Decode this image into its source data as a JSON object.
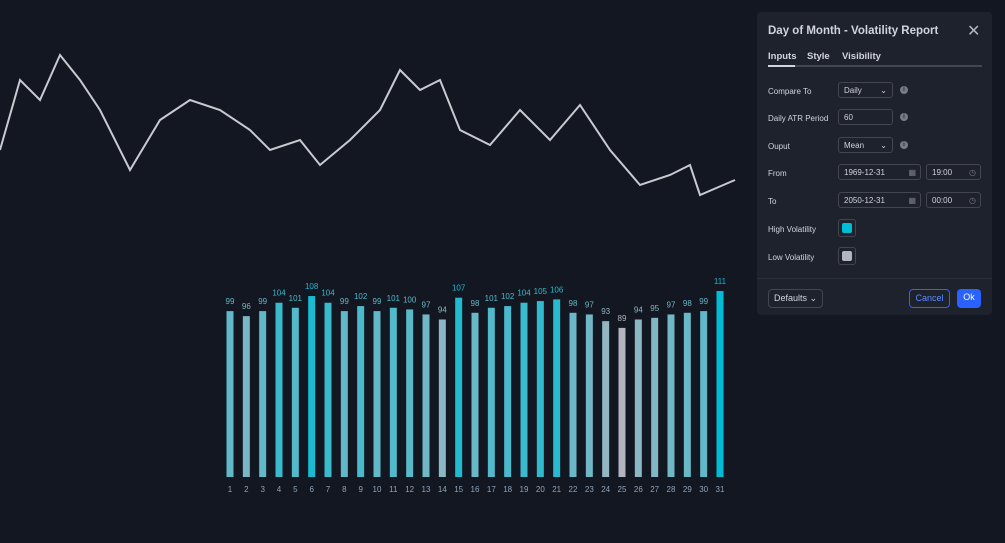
{
  "chart_data": {
    "type": "bar",
    "categories": [
      "1",
      "2",
      "3",
      "4",
      "5",
      "6",
      "7",
      "8",
      "9",
      "10",
      "11",
      "12",
      "13",
      "14",
      "15",
      "16",
      "17",
      "18",
      "19",
      "20",
      "21",
      "22",
      "23",
      "24",
      "25",
      "26",
      "27",
      "28",
      "29",
      "30",
      "31"
    ],
    "values": [
      99,
      96,
      99,
      104,
      101,
      108,
      104,
      99,
      102,
      99,
      101,
      100,
      97,
      94,
      107,
      98,
      101,
      102,
      104,
      105,
      106,
      98,
      97,
      93,
      89,
      94,
      95,
      97,
      98,
      99,
      111
    ],
    "high_color": "#00bcd4",
    "low_color": "#b2b5be"
  },
  "dialog": {
    "title": "Day of Month - Volatility Report",
    "tabs": [
      "Inputs",
      "Style",
      "Visibility"
    ],
    "rows": [
      {
        "label": "Compare To",
        "value": "Daily"
      },
      {
        "label": "Daily ATR Period",
        "value": "60"
      },
      {
        "label": "Ouput",
        "value": "Mean"
      },
      {
        "label": "From",
        "value": "1969-12-31",
        "time": "19:00"
      },
      {
        "label": "To",
        "value": "2050-12-31",
        "time": "00:00"
      },
      {
        "label": "High Volatility"
      },
      {
        "label": "Low Volatility"
      }
    ],
    "defaults": "Defaults",
    "cancel": "Cancel",
    "ok": "Ok"
  }
}
